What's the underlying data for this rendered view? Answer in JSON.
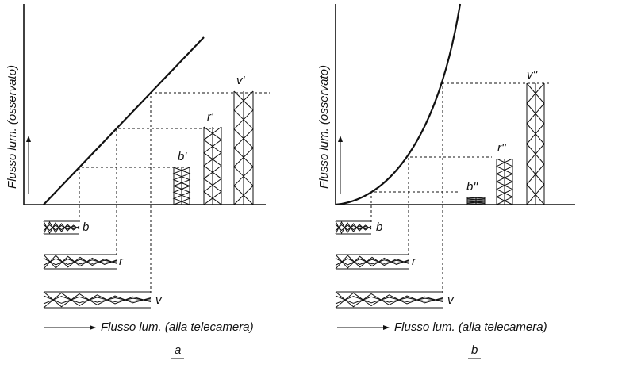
{
  "panels": [
    {
      "y_label": "Flusso lum. (osservato)",
      "x_label": "Flusso lum. (alla telecamera)",
      "input_labels": [
        "b",
        "r",
        "v"
      ],
      "output_labels": [
        "b'",
        "r'",
        "v'"
      ],
      "caption": "a"
    },
    {
      "y_label": "Flusso lum. (osservato)",
      "x_label": "Flusso lum. (alla telecamera)",
      "input_labels": [
        "b",
        "r",
        "v"
      ],
      "output_labels": [
        "b''",
        "r''",
        "v''"
      ],
      "caption": "b"
    }
  ]
}
